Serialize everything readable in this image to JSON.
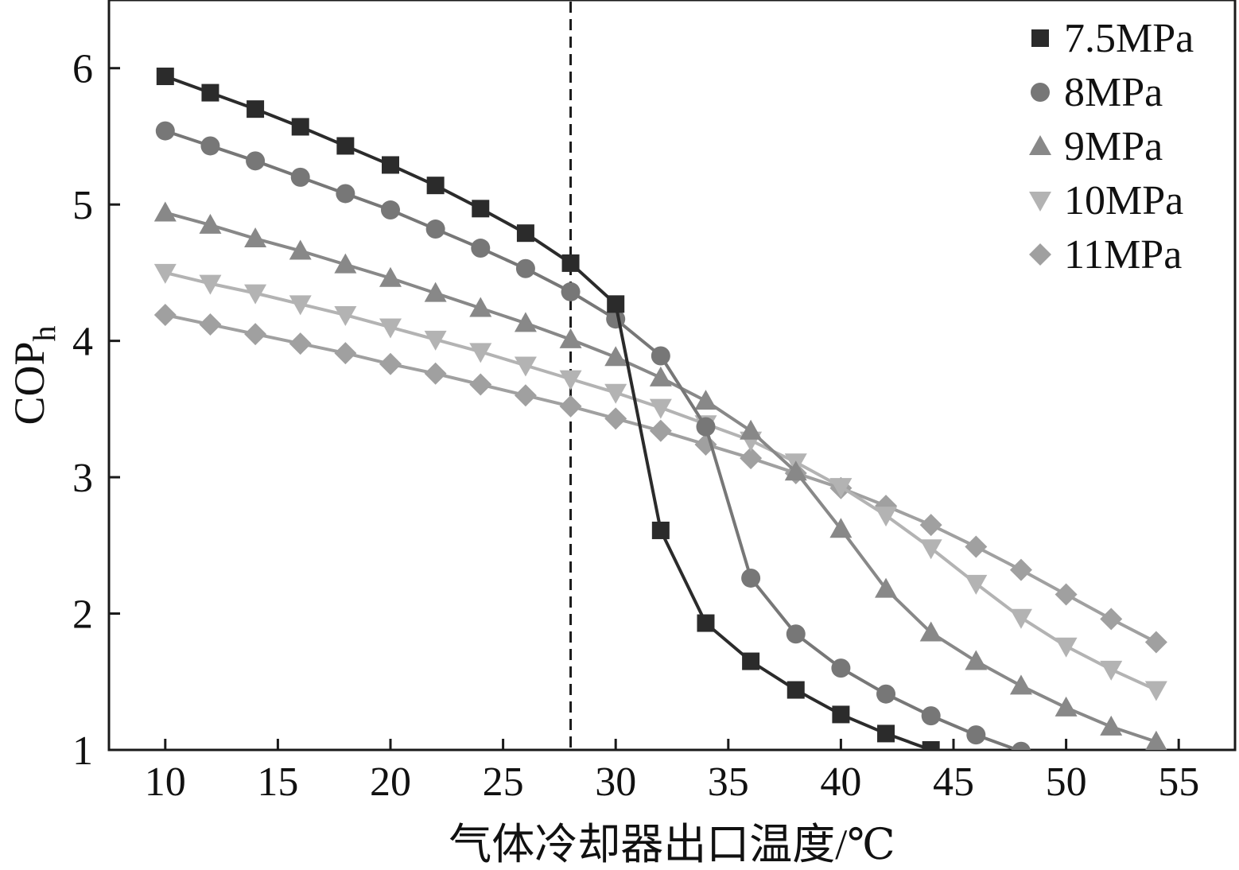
{
  "chart_data": {
    "type": "line",
    "xlabel": "气体冷却器出口温度/℃",
    "ylabel": "COP",
    "ylabel_sub": "h",
    "xlim": [
      7.5,
      57.5
    ],
    "ylim": [
      1,
      6.5
    ],
    "xticks": [
      10,
      15,
      20,
      25,
      30,
      35,
      40,
      45,
      50,
      55
    ],
    "yticks": [
      1,
      2,
      3,
      4,
      5,
      6
    ],
    "x": [
      10,
      12,
      14,
      16,
      18,
      20,
      22,
      24,
      26,
      28,
      30,
      32,
      34,
      36,
      38,
      40,
      42,
      44,
      46,
      48,
      50,
      52,
      54
    ],
    "reference_line_x": 28,
    "legend_position": "top-right",
    "series": [
      {
        "name": "7.5MPa",
        "marker": "square",
        "color": "#2b2b2b",
        "values": [
          5.94,
          5.82,
          5.7,
          5.57,
          5.43,
          5.29,
          5.14,
          4.97,
          4.79,
          4.57,
          4.27,
          2.61,
          1.93,
          1.65,
          1.44,
          1.26,
          1.12,
          1.0,
          null,
          null,
          null,
          null,
          null
        ]
      },
      {
        "name": "8MPa",
        "marker": "circle",
        "color": "#777777",
        "values": [
          5.54,
          5.43,
          5.32,
          5.2,
          5.08,
          4.96,
          4.82,
          4.68,
          4.53,
          4.36,
          4.16,
          3.89,
          3.37,
          2.26,
          1.85,
          1.6,
          1.41,
          1.25,
          1.11,
          0.99,
          null,
          null,
          null
        ]
      },
      {
        "name": "9MPa",
        "marker": "triangle-up",
        "color": "#888888",
        "values": [
          4.94,
          4.85,
          4.75,
          4.66,
          4.56,
          4.46,
          4.35,
          4.24,
          4.13,
          4.01,
          3.88,
          3.73,
          3.56,
          3.34,
          3.04,
          2.62,
          2.18,
          1.86,
          1.65,
          1.47,
          1.31,
          1.17,
          1.06
        ]
      },
      {
        "name": "10MPa",
        "marker": "triangle-down",
        "color": "#b3b3b3",
        "values": [
          4.5,
          4.42,
          4.35,
          4.27,
          4.19,
          4.1,
          4.01,
          3.92,
          3.82,
          3.72,
          3.62,
          3.51,
          3.39,
          3.27,
          3.11,
          2.93,
          2.72,
          2.48,
          2.22,
          1.97,
          1.76,
          1.59,
          1.44
        ]
      },
      {
        "name": "11MPa",
        "marker": "diamond",
        "color": "#a0a0a0",
        "values": [
          4.19,
          4.12,
          4.05,
          3.98,
          3.91,
          3.83,
          3.76,
          3.68,
          3.6,
          3.52,
          3.43,
          3.34,
          3.24,
          3.14,
          3.03,
          2.92,
          2.79,
          2.65,
          2.49,
          2.32,
          2.14,
          1.96,
          1.79
        ]
      }
    ]
  }
}
